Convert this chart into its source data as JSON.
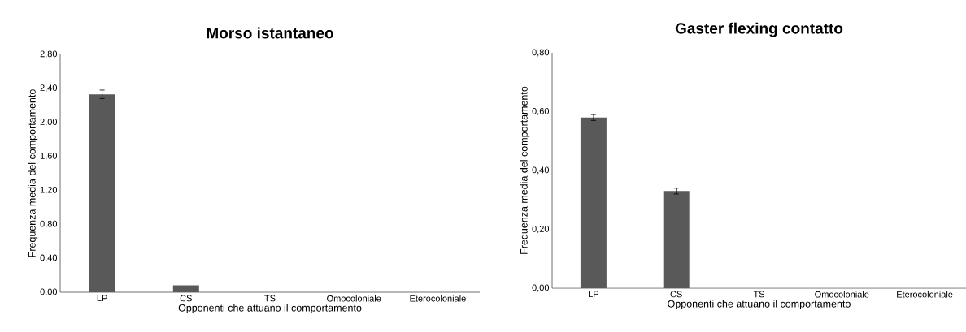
{
  "chart_data": [
    {
      "type": "bar",
      "title": "Morso istantaneo",
      "xlabel": "Opponenti che attuano il comportamento",
      "ylabel": "Frequenza media del comportamento",
      "categories": [
        "LP",
        "CS",
        "TS",
        "Omocoloniale",
        "Eterocoloniale"
      ],
      "values": [
        2.33,
        0.08,
        0,
        0,
        0
      ],
      "errors": [
        0.05,
        null,
        null,
        null,
        null
      ],
      "color": "#595959",
      "ylim": [
        0,
        2.8
      ],
      "yticks": [
        {
          "value": 0,
          "label": "0,00"
        },
        {
          "value": 0.4,
          "label": "0,40"
        },
        {
          "value": 0.8,
          "label": "0,80"
        },
        {
          "value": 1.2,
          "label": "1,20"
        },
        {
          "value": 1.6,
          "label": "1,60"
        },
        {
          "value": 2.0,
          "label": "2,00"
        },
        {
          "value": 2.4,
          "label": "2,40"
        },
        {
          "value": 2.8,
          "label": "2,80"
        }
      ],
      "grid": false
    },
    {
      "type": "bar",
      "title": "Gaster flexing contatto",
      "xlabel": "Opponenti che attuano il comportamento",
      "ylabel": "Frequenza media del comportamento",
      "categories": [
        "LP",
        "CS",
        "TS",
        "Omocoloniale",
        "Eterocoloniale"
      ],
      "values": [
        0.58,
        0.33,
        0,
        0,
        0
      ],
      "errors": [
        0.01,
        0.01,
        null,
        null,
        null
      ],
      "color": "#595959",
      "ylim": [
        0,
        0.8
      ],
      "yticks": [
        {
          "value": 0,
          "label": "0,00"
        },
        {
          "value": 0.2,
          "label": "0,20"
        },
        {
          "value": 0.4,
          "label": "0,40"
        },
        {
          "value": 0.6,
          "label": "0,60"
        },
        {
          "value": 0.8,
          "label": "0,80"
        }
      ],
      "grid": false
    }
  ]
}
